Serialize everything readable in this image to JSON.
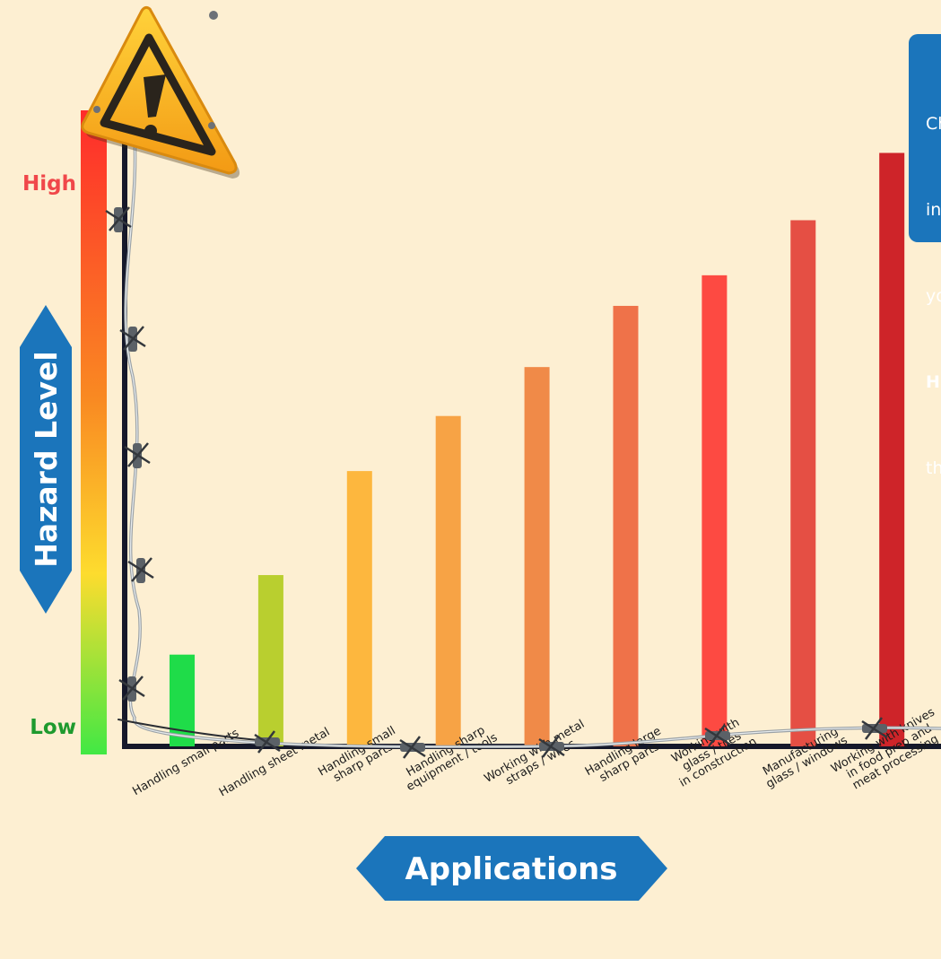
{
  "chart_data": {
    "type": "bar",
    "xlabel": "Applications",
    "ylabel": "Hazard Level",
    "y_high_label": "High",
    "y_low_label": "Low",
    "ylim": [
      0,
      100
    ],
    "categories": [
      "Handling small parts",
      "Handling sheet metal",
      "Handling small\nsharp parts",
      "Handling sharp\nequipment / tools",
      "Working with metal\nstraps / wires",
      "Handling large\nsharp parts",
      "Working with\nglass / tiles\nin construction",
      "Manufacturing\nglass / windows",
      "Working with knives\nin food prep and\nmeat processing"
    ],
    "values": [
      15,
      28,
      45,
      54,
      62,
      72,
      77,
      86,
      97
    ],
    "bar_colors": [
      "#1fdc49",
      "#b9cf2f",
      "#fdb73e",
      "#f7a345",
      "#f08a48",
      "#ef7249",
      "#fd4a42",
      "#e54f44",
      "#ce2429"
    ],
    "grid": false
  },
  "callout": {
    "lines": [
      "Ch",
      "in",
      "yo",
      "H",
      "th"
    ]
  },
  "colors": {
    "background": "#fdefd2",
    "axis_badge": "#1b75bb",
    "high": "#f0474a",
    "low": "#1e9a2e"
  },
  "icons": [
    "warning-sign-icon",
    "barbed-wire"
  ]
}
